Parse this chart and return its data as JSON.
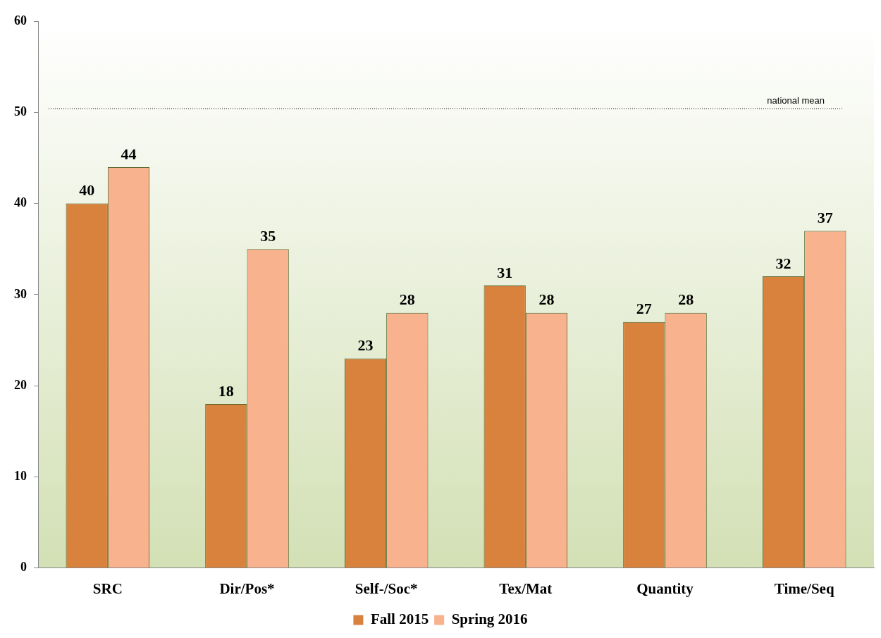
{
  "chart_data": {
    "type": "bar",
    "categories": [
      "SRC",
      "Dir/Pos*",
      "Self-/Soc*",
      "Tex/Mat",
      "Quantity",
      "Time/Seq"
    ],
    "series": [
      {
        "name": "Fall 2015",
        "color": "#d9823e",
        "values": [
          40,
          18,
          23,
          31,
          27,
          32
        ]
      },
      {
        "name": "Spring 2016",
        "color": "#f8b28e",
        "values": [
          44,
          35,
          28,
          28,
          28,
          37
        ]
      }
    ],
    "ylim": [
      0,
      60
    ],
    "yticks": [
      0,
      10,
      20,
      30,
      40,
      50,
      60
    ],
    "grid": false,
    "legend": "bottom",
    "data_labels": true,
    "ref_lines": [
      {
        "axis": "y",
        "value": 50.4,
        "label": "national mean",
        "color": "#000000",
        "line_style": "dotted"
      }
    ]
  }
}
